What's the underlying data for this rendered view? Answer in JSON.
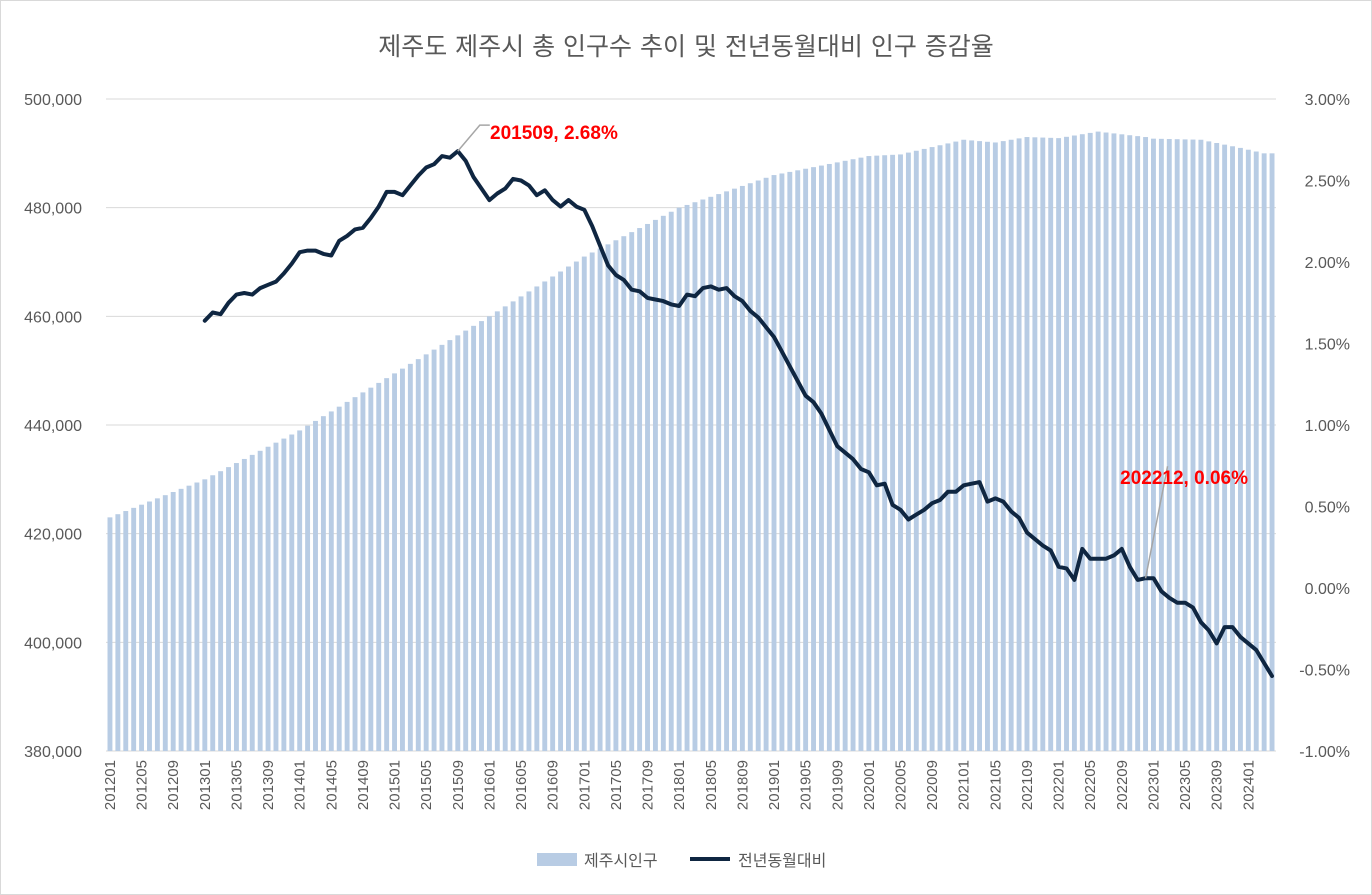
{
  "chart_data": {
    "type": "bar+line",
    "title": "제주도 제주시 총 인구수 추이 및 전년동월대비 인구 증감율",
    "x_tick_labels": [
      "201201",
      "201205",
      "201209",
      "201301",
      "201305",
      "201309",
      "201401",
      "201405",
      "201409",
      "201501",
      "201505",
      "201509",
      "201601",
      "201605",
      "201609",
      "201701",
      "201705",
      "201709",
      "201801",
      "201805",
      "201809",
      "201901",
      "201905",
      "201909",
      "202001",
      "202005",
      "202009",
      "202101",
      "202105",
      "202109",
      "202201",
      "202205",
      "202209",
      "202301",
      "202305",
      "202309",
      "202401"
    ],
    "y_left": {
      "min": 380000,
      "max": 500000,
      "ticks": [
        "500,000",
        "480,000",
        "460,000",
        "440,000",
        "420,000",
        "400,000",
        "380,000"
      ]
    },
    "y_right": {
      "min": -1.0,
      "max": 3.0,
      "ticks": [
        "3.00%",
        "2.50%",
        "2.00%",
        "1.50%",
        "1.00%",
        "0.50%",
        "0.00%",
        "-0.50%",
        "-1.00%"
      ]
    },
    "legend": [
      "제주시인구",
      "전년동월대비"
    ],
    "annotations": [
      {
        "text": "201509, 2.68%",
        "period": "201509",
        "value": 2.68
      },
      {
        "text": "202212, 0.06%",
        "period": "202212",
        "value": 0.06
      }
    ],
    "series": [
      {
        "name": "제주시인구",
        "type": "bar",
        "color": "#b8cce4",
        "anchors": [
          [
            "201201",
            423000
          ],
          [
            "201301",
            430000
          ],
          [
            "201401",
            439000
          ],
          [
            "201501",
            449500
          ],
          [
            "201601",
            460000
          ],
          [
            "201701",
            471000
          ],
          [
            "201801",
            480000
          ],
          [
            "201805",
            482000
          ],
          [
            "201901",
            486000
          ],
          [
            "202001",
            489500
          ],
          [
            "202005",
            489800
          ],
          [
            "202101",
            492500
          ],
          [
            "202105",
            492000
          ],
          [
            "202109",
            493000
          ],
          [
            "202201",
            492800
          ],
          [
            "202206",
            494000
          ],
          [
            "202209",
            493500
          ],
          [
            "202212",
            493000
          ],
          [
            "202301",
            492700
          ],
          [
            "202307",
            492500
          ],
          [
            "202312",
            491000
          ],
          [
            "202403",
            490000
          ]
        ]
      },
      {
        "name": "전년동월대비",
        "type": "line",
        "color": "#0f2641",
        "anchors": [
          [
            "201301",
            1.64
          ],
          [
            "201302",
            1.69
          ],
          [
            "201303",
            1.68
          ],
          [
            "201304",
            1.75
          ],
          [
            "201305",
            1.8
          ],
          [
            "201306",
            1.81
          ],
          [
            "201307",
            1.8
          ],
          [
            "201308",
            1.84
          ],
          [
            "201309",
            1.86
          ],
          [
            "201310",
            1.88
          ],
          [
            "201311",
            1.93
          ],
          [
            "201312",
            1.99
          ],
          [
            "201401",
            2.06
          ],
          [
            "201402",
            2.07
          ],
          [
            "201403",
            2.07
          ],
          [
            "201404",
            2.05
          ],
          [
            "201405",
            2.04
          ],
          [
            "201406",
            2.13
          ],
          [
            "201407",
            2.16
          ],
          [
            "201408",
            2.2
          ],
          [
            "201409",
            2.21
          ],
          [
            "201410",
            2.27
          ],
          [
            "201411",
            2.34
          ],
          [
            "201412",
            2.43
          ],
          [
            "201501",
            2.43
          ],
          [
            "201502",
            2.41
          ],
          [
            "201503",
            2.47
          ],
          [
            "201504",
            2.53
          ],
          [
            "201505",
            2.58
          ],
          [
            "201506",
            2.6
          ],
          [
            "201507",
            2.65
          ],
          [
            "201508",
            2.64
          ],
          [
            "201509",
            2.68
          ],
          [
            "201510",
            2.62
          ],
          [
            "201511",
            2.52
          ],
          [
            "201512",
            2.45
          ],
          [
            "201601",
            2.38
          ],
          [
            "201602",
            2.42
          ],
          [
            "201603",
            2.45
          ],
          [
            "201604",
            2.51
          ],
          [
            "201605",
            2.5
          ],
          [
            "201606",
            2.47
          ],
          [
            "201607",
            2.41
          ],
          [
            "201608",
            2.44
          ],
          [
            "201609",
            2.38
          ],
          [
            "201610",
            2.34
          ],
          [
            "201611",
            2.38
          ],
          [
            "201612",
            2.34
          ],
          [
            "201701",
            2.32
          ],
          [
            "201702",
            2.22
          ],
          [
            "201703",
            2.1
          ],
          [
            "201704",
            1.98
          ],
          [
            "201705",
            1.92
          ],
          [
            "201706",
            1.89
          ],
          [
            "201707",
            1.83
          ],
          [
            "201708",
            1.82
          ],
          [
            "201709",
            1.78
          ],
          [
            "201710",
            1.77
          ],
          [
            "201711",
            1.76
          ],
          [
            "201712",
            1.74
          ],
          [
            "201801",
            1.73
          ],
          [
            "201802",
            1.8
          ],
          [
            "201803",
            1.79
          ],
          [
            "201804",
            1.84
          ],
          [
            "201805",
            1.85
          ],
          [
            "201806",
            1.83
          ],
          [
            "201807",
            1.84
          ],
          [
            "201808",
            1.79
          ],
          [
            "201809",
            1.76
          ],
          [
            "201810",
            1.7
          ],
          [
            "201811",
            1.66
          ],
          [
            "201812",
            1.6
          ],
          [
            "201901",
            1.54
          ],
          [
            "201902",
            1.45
          ],
          [
            "201903",
            1.36
          ],
          [
            "201904",
            1.27
          ],
          [
            "201905",
            1.18
          ],
          [
            "201906",
            1.14
          ],
          [
            "201907",
            1.07
          ],
          [
            "201908",
            0.97
          ],
          [
            "201909",
            0.87
          ],
          [
            "201910",
            0.83
          ],
          [
            "201911",
            0.79
          ],
          [
            "201912",
            0.73
          ],
          [
            "202001",
            0.71
          ],
          [
            "202002",
            0.63
          ],
          [
            "202003",
            0.64
          ],
          [
            "202004",
            0.51
          ],
          [
            "202005",
            0.48
          ],
          [
            "202006",
            0.42
          ],
          [
            "202007",
            0.45
          ],
          [
            "202008",
            0.48
          ],
          [
            "202009",
            0.52
          ],
          [
            "202010",
            0.54
          ],
          [
            "202011",
            0.59
          ],
          [
            "202012",
            0.59
          ],
          [
            "202101",
            0.63
          ],
          [
            "202102",
            0.64
          ],
          [
            "202103",
            0.65
          ],
          [
            "202104",
            0.53
          ],
          [
            "202105",
            0.55
          ],
          [
            "202106",
            0.53
          ],
          [
            "202107",
            0.47
          ],
          [
            "202108",
            0.43
          ],
          [
            "202109",
            0.34
          ],
          [
            "202110",
            0.3
          ],
          [
            "202111",
            0.26
          ],
          [
            "202112",
            0.23
          ],
          [
            "202201",
            0.13
          ],
          [
            "202202",
            0.12
          ],
          [
            "202203",
            0.05
          ],
          [
            "202204",
            0.24
          ],
          [
            "202205",
            0.18
          ],
          [
            "202206",
            0.18
          ],
          [
            "202207",
            0.18
          ],
          [
            "202208",
            0.2
          ],
          [
            "202209",
            0.24
          ],
          [
            "202210",
            0.13
          ],
          [
            "202211",
            0.05
          ],
          [
            "202212",
            0.06
          ],
          [
            "202301",
            0.06
          ],
          [
            "202302",
            -0.02
          ],
          [
            "202303",
            -0.06
          ],
          [
            "202304",
            -0.09
          ],
          [
            "202305",
            -0.09
          ],
          [
            "202306",
            -0.12
          ],
          [
            "202307",
            -0.21
          ],
          [
            "202308",
            -0.26
          ],
          [
            "202309",
            -0.34
          ],
          [
            "202310",
            -0.24
          ],
          [
            "202311",
            -0.24
          ],
          [
            "202312",
            -0.3
          ],
          [
            "202401",
            -0.34
          ],
          [
            "202402",
            -0.38
          ],
          [
            "202403",
            -0.46
          ],
          [
            "202404",
            -0.54
          ]
        ]
      }
    ]
  }
}
